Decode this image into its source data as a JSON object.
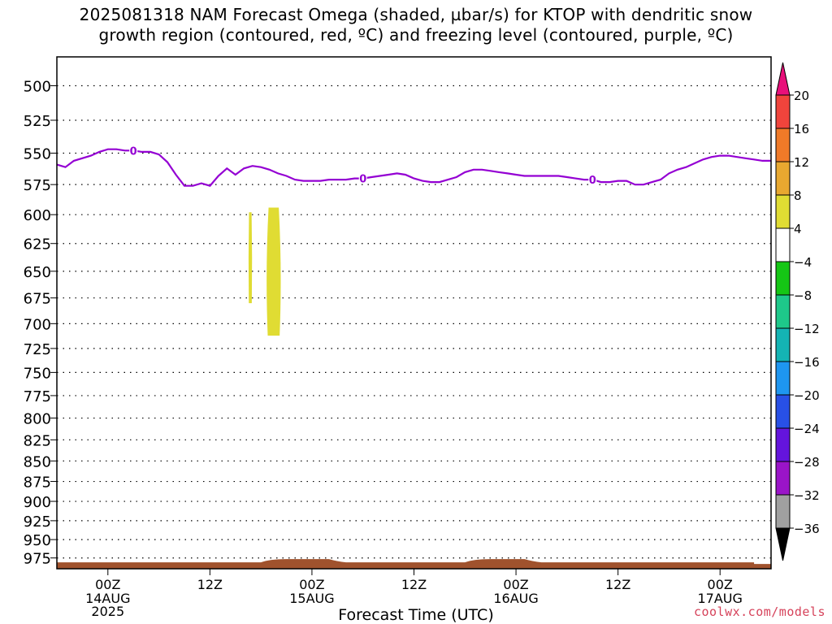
{
  "title": {
    "line1": "2025081318 NAM Forecast Omega (shaded, µbar/s) for KTOP with dendritic snow",
    "line2": "growth region (contoured, red, ºC) and freezing level (contoured, purple, ºC)"
  },
  "credit": "coolwx.com/models",
  "chart_data": {
    "type": "area",
    "title": "2025081318 NAM Forecast Omega (shaded, µbar/s) for KTOP with dendritic snow growth region (contoured, red, ºC) and freezing level (contoured, purple, ºC)",
    "xlabel": "Forecast Time (UTC)",
    "ylabel": "",
    "y_scale": "log-pressure",
    "y_inverted": true,
    "ylim": [
      480,
      990
    ],
    "y_ticks": [
      500,
      525,
      550,
      575,
      600,
      625,
      650,
      675,
      700,
      725,
      750,
      775,
      800,
      825,
      850,
      875,
      900,
      925,
      950,
      975
    ],
    "x_range_hours_after_init": [
      0,
      84
    ],
    "x_ticks": [
      {
        "hour": 6,
        "label": "00Z",
        "sub1": "14AUG",
        "sub2": "2025"
      },
      {
        "hour": 18,
        "label": "12Z",
        "sub1": "",
        "sub2": ""
      },
      {
        "hour": 30,
        "label": "00Z",
        "sub1": "15AUG",
        "sub2": ""
      },
      {
        "hour": 42,
        "label": "12Z",
        "sub1": "",
        "sub2": ""
      },
      {
        "hour": 54,
        "label": "00Z",
        "sub1": "16AUG",
        "sub2": ""
      },
      {
        "hour": 66,
        "label": "12Z",
        "sub1": "",
        "sub2": ""
      },
      {
        "hour": 78,
        "label": "00Z",
        "sub1": "17AUG",
        "sub2": ""
      }
    ],
    "grid": true,
    "freezing_level": {
      "label": "0",
      "color": "#9400d3",
      "x_hours": [
        0,
        1,
        2,
        4,
        5,
        6,
        7,
        8,
        9,
        10,
        11,
        12,
        13,
        14,
        15,
        16,
        17,
        18,
        19,
        20,
        21,
        22,
        23,
        24,
        25,
        26,
        27,
        28,
        29,
        30,
        31,
        32,
        33,
        34,
        35,
        36,
        37,
        38,
        39,
        40,
        41,
        42,
        43,
        44,
        45,
        46,
        47,
        48,
        49,
        50,
        51,
        52,
        53,
        54,
        55,
        56,
        57,
        58,
        59,
        60,
        61,
        62,
        63,
        64,
        65,
        66,
        67,
        68,
        69,
        70,
        71,
        72,
        73,
        74,
        75,
        76,
        77,
        78,
        79,
        80,
        81,
        82,
        83,
        84
      ],
      "pressure": [
        559,
        561,
        556,
        552,
        549,
        547,
        547,
        548,
        548,
        549,
        549,
        551,
        557,
        567,
        576,
        576,
        574,
        576,
        568,
        562,
        567,
        562,
        560,
        561,
        563,
        566,
        568,
        571,
        572,
        572,
        572,
        571,
        571,
        571,
        570,
        570,
        569,
        568,
        567,
        566,
        567,
        570,
        572,
        573,
        573,
        571,
        569,
        565,
        563,
        563,
        564,
        565,
        566,
        567,
        568,
        568,
        568,
        568,
        568,
        569,
        570,
        571,
        571,
        573,
        573,
        572,
        572,
        575,
        575,
        573,
        571,
        566,
        563,
        561,
        558,
        555,
        553,
        552,
        552,
        553,
        554,
        555,
        556,
        556
      ],
      "labels_at_hours": [
        9,
        36,
        63
      ]
    },
    "omega_shaded": [
      {
        "value_range": [
          4,
          8
        ],
        "color": "#e0dc33",
        "x_hours": [
          22.5,
          23
        ],
        "pressure_range": [
          598,
          680
        ]
      },
      {
        "value_range": [
          4,
          8
        ],
        "color": "#e0dc33",
        "x_hours": [
          24.5,
          26.5
        ],
        "pressure_range": [
          594,
          712
        ]
      }
    ],
    "ground": {
      "color": "#a0522d",
      "description_pressure_top": 980
    },
    "colorbar": {
      "ticks": [
        "20",
        "16",
        "12",
        "8",
        "4",
        "-4",
        "-8",
        "-12",
        "-16",
        "-20",
        "-24",
        "-28",
        "-32",
        "-36"
      ],
      "bins": [
        {
          "range": [
            16,
            20
          ],
          "color": "#f0443c"
        },
        {
          "range": [
            12,
            16
          ],
          "color": "#f07a28"
        },
        {
          "range": [
            8,
            12
          ],
          "color": "#e8a830"
        },
        {
          "range": [
            4,
            8
          ],
          "color": "#e0dc33"
        },
        {
          "range": [
            -4,
            4
          ],
          "color": "#ffffff"
        },
        {
          "range": [
            -8,
            -4
          ],
          "color": "#15c615"
        },
        {
          "range": [
            -12,
            -8
          ],
          "color": "#1ec88a"
        },
        {
          "range": [
            -16,
            -12
          ],
          "color": "#14b4b4"
        },
        {
          "range": [
            -20,
            -16
          ],
          "color": "#1e96f0"
        },
        {
          "range": [
            -24,
            -20
          ],
          "color": "#2850e6"
        },
        {
          "range": [
            -28,
            -24
          ],
          "color": "#6414dc"
        },
        {
          "range": [
            -32,
            -28
          ],
          "color": "#9a14c8"
        },
        {
          "range": [
            -36,
            -32
          ],
          "color": "#a0a0a0"
        }
      ],
      "top_arrow_color": "#e8107a",
      "bottom_arrow_color": "#000000"
    }
  }
}
